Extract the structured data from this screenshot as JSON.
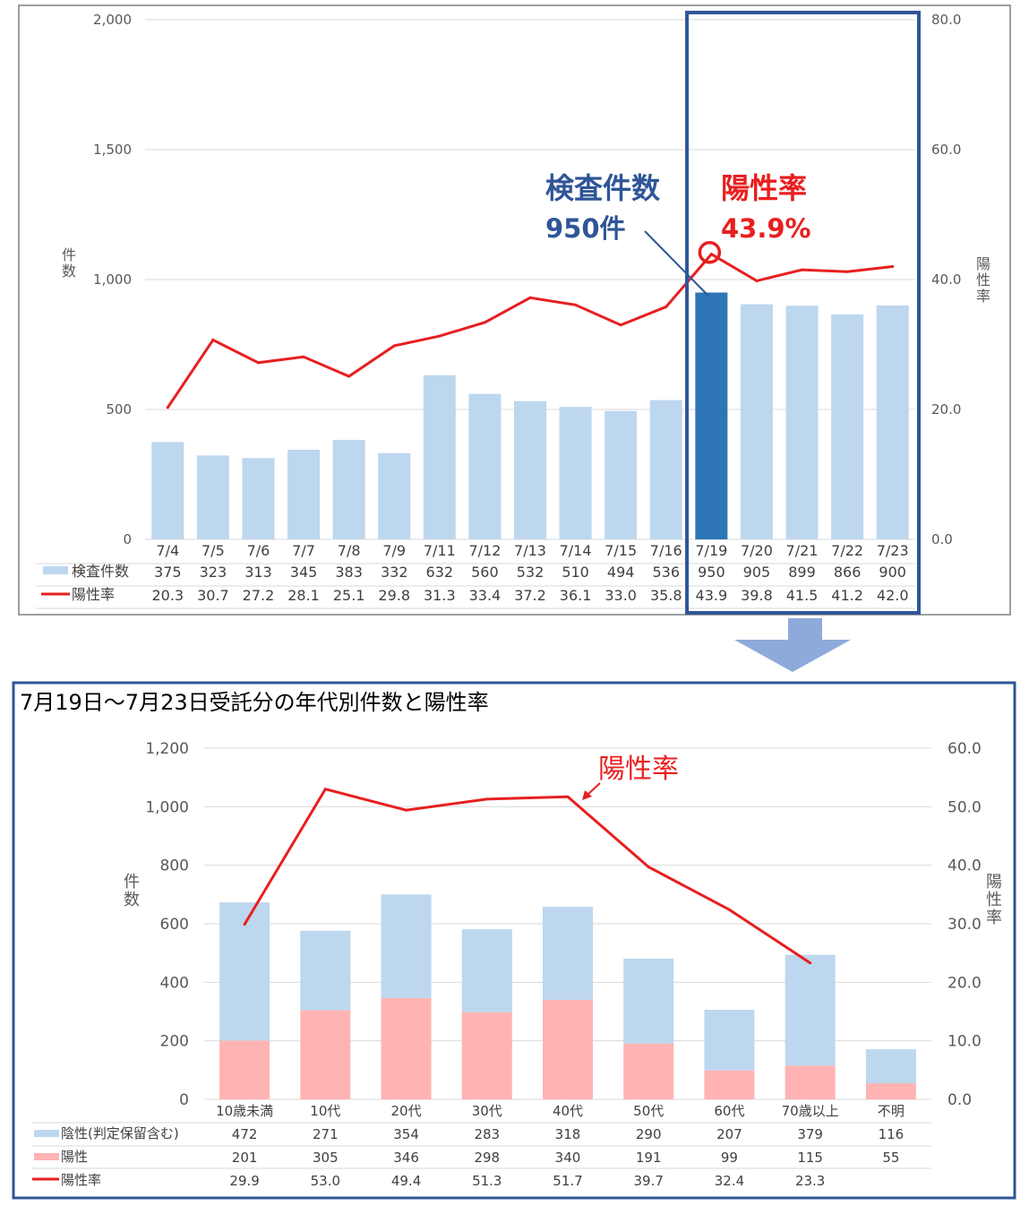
{
  "chart_data": [
    {
      "type": "bar+line",
      "categories": [
        "7/4",
        "7/5",
        "7/6",
        "7/7",
        "7/8",
        "7/9",
        "7/11",
        "7/12",
        "7/13",
        "7/14",
        "7/15",
        "7/16",
        "7/19",
        "7/20",
        "7/21",
        "7/22",
        "7/23"
      ],
      "series": [
        {
          "name": "検査件数",
          "type": "bar",
          "axis": "left",
          "values": [
            375,
            323,
            313,
            345,
            383,
            332,
            632,
            560,
            532,
            510,
            494,
            536,
            950,
            905,
            899,
            866,
            900
          ]
        },
        {
          "name": "陽性率",
          "type": "line",
          "axis": "right",
          "values": [
            20.3,
            30.7,
            27.2,
            28.1,
            25.1,
            29.8,
            31.3,
            33.4,
            37.2,
            36.1,
            33.0,
            35.8,
            43.9,
            39.8,
            41.5,
            41.2,
            42.0
          ]
        }
      ],
      "table_values": {
        "tests": [
          "375",
          "323",
          "313",
          "345",
          "383",
          "332",
          "632",
          "560",
          "532",
          "510",
          "494",
          "536",
          "950",
          "905",
          "899",
          "866",
          "900"
        ],
        "rate": [
          "20.3",
          "30.7",
          "27.2",
          "28.1",
          "25.1",
          "29.8",
          "31.3",
          "33.4",
          "37.2",
          "36.1",
          "33.0",
          "35.8",
          "43.9",
          "39.8",
          "41.5",
          "41.2",
          "42.0"
        ]
      },
      "ylabel_left": "件数",
      "ylabel_right": "陽性率",
      "ylim_left": [
        0,
        2000
      ],
      "ylim_right": [
        0,
        80
      ],
      "y_ticks_left": [
        "0",
        "500",
        "1,000",
        "1,500",
        "2,000"
      ],
      "y_ticks_right": [
        "0.0",
        "20.0",
        "40.0",
        "60.0",
        "80.0"
      ],
      "highlight_index": 12,
      "highlight_window_start": 12,
      "annotations": {
        "tests_label": "検査件数",
        "tests_value": "950件",
        "rate_label": "陽性率",
        "rate_value": "43.9%"
      },
      "colors": {
        "bar": "#bdd7ee",
        "bar_highlight": "#2e75b6",
        "line": "#e81f1f",
        "frame": "#2f5597",
        "arrow": "#8eaadb",
        "annotation_blue": "#2f5597",
        "annotation_red": "#e81f1f"
      }
    },
    {
      "type": "stacked-bar+line",
      "title": "7月19日～7月23日受託分の年代別件数と陽性率",
      "categories": [
        "10歳未満",
        "10代",
        "20代",
        "30代",
        "40代",
        "50代",
        "60代",
        "70歳以上",
        "不明"
      ],
      "series": [
        {
          "name": "陰性(判定保留含む)",
          "type": "bar",
          "stack": "a",
          "axis": "left",
          "values": [
            472,
            271,
            354,
            283,
            318,
            290,
            207,
            379,
            116
          ]
        },
        {
          "name": "陽性",
          "type": "bar",
          "stack": "a",
          "axis": "left",
          "values": [
            201,
            305,
            346,
            298,
            340,
            191,
            99,
            115,
            55
          ]
        },
        {
          "name": "陽性率",
          "type": "line",
          "axis": "right",
          "values": [
            29.9,
            53.0,
            49.4,
            51.3,
            51.7,
            39.7,
            32.4,
            23.3,
            null
          ]
        }
      ],
      "table_values": {
        "negative": [
          "472",
          "271",
          "354",
          "283",
          "318",
          "290",
          "207",
          "379",
          "116"
        ],
        "positive": [
          "201",
          "305",
          "346",
          "298",
          "340",
          "191",
          "99",
          "115",
          "55"
        ],
        "rate": [
          "29.9",
          "53.0",
          "49.4",
          "51.3",
          "51.7",
          "39.7",
          "32.4",
          "23.3",
          ""
        ]
      },
      "ylabel_left": "件数",
      "ylabel_right": "陽性率",
      "ylim_left": [
        0,
        1200
      ],
      "ylim_right": [
        0,
        60
      ],
      "y_ticks_left": [
        "0",
        "200",
        "400",
        "600",
        "800",
        "1,000",
        "1,200"
      ],
      "y_ticks_right": [
        "0.0",
        "10.0",
        "20.0",
        "30.0",
        "40.0",
        "50.0",
        "60.0"
      ],
      "annotation_rate_label": "陽性率",
      "colors": {
        "negative": "#bdd7ee",
        "positive": "#ffb3b3",
        "line": "#e81f1f",
        "frame": "#2f5597"
      }
    }
  ]
}
